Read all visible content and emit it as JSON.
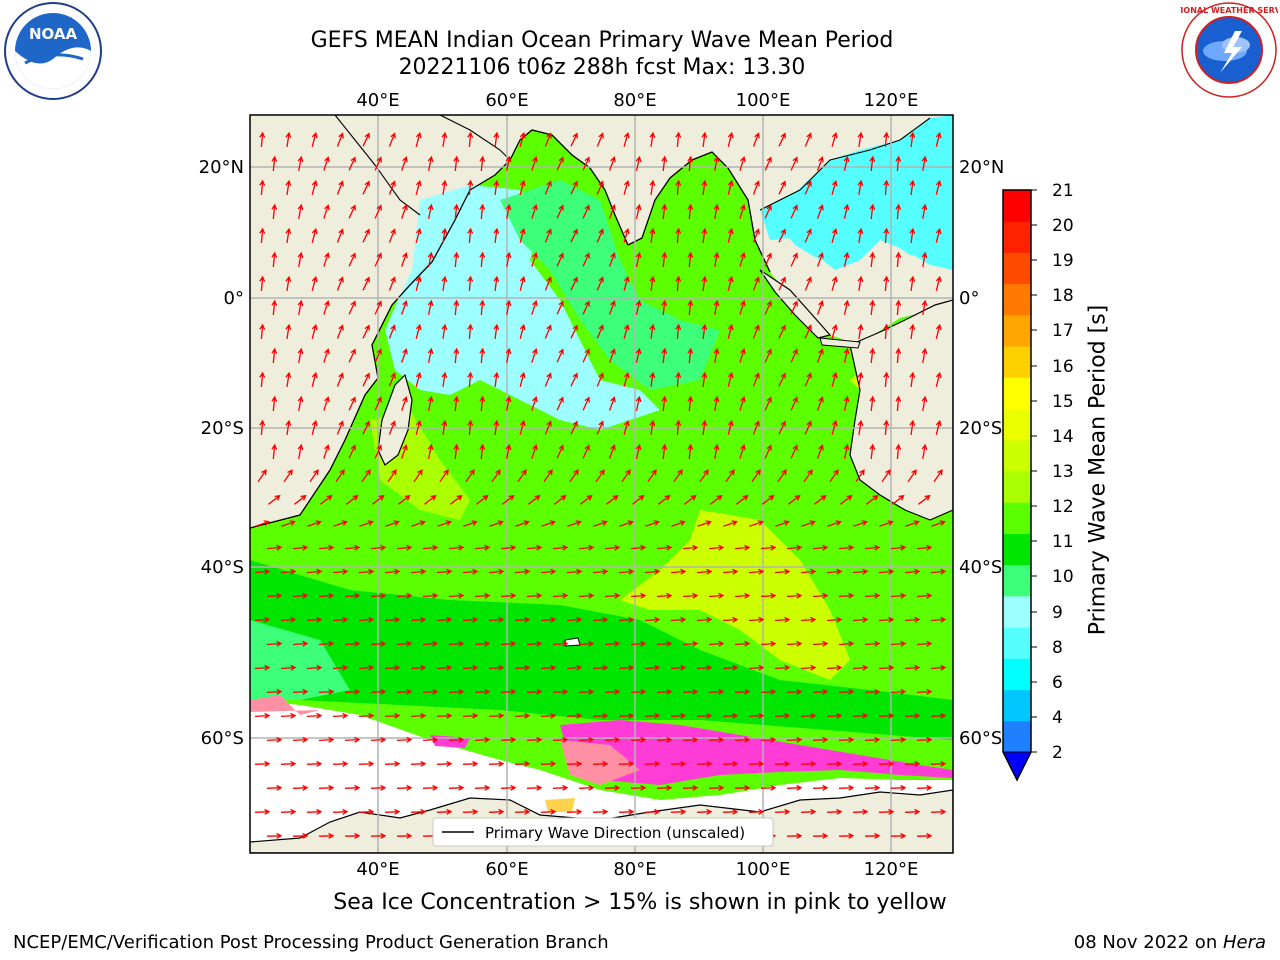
{
  "header": {
    "title_line1": "GEFS MEAN Indian Ocean Primary Wave Mean Period",
    "title_line2": "20221106 t06z 288h fcst   Max: 13.30"
  },
  "logos": {
    "left": {
      "name": "noaa-logo",
      "text": "NOAA"
    },
    "right": {
      "name": "nws-logo",
      "text": "NATIONAL WEATHER SERVICE"
    }
  },
  "map": {
    "lon_labels_top": [
      "40°E",
      "60°E",
      "80°E",
      "100°E",
      "120°E"
    ],
    "lon_labels_bottom": [
      "40°E",
      "60°E",
      "80°E",
      "100°E",
      "120°E"
    ],
    "lat_labels_left": [
      "20°N",
      "0°",
      "20°S",
      "40°S",
      "60°S"
    ],
    "lat_labels_right": [
      "20°N",
      "0°",
      "20°S",
      "40°S",
      "60°S"
    ],
    "legend_label": "Primary Wave Direction (unscaled)",
    "arrow_color": "#ff0000",
    "land_color": "#efeddc",
    "ice_colors": [
      "#ff3dd6",
      "#ff8fa3",
      "#ffd24d"
    ]
  },
  "colorbar": {
    "label": "Primary Wave Mean Period [s]",
    "ticks": [
      "2",
      "4",
      "6",
      "8",
      "9",
      "10",
      "11",
      "12",
      "13",
      "14",
      "15",
      "16",
      "17",
      "18",
      "19",
      "20",
      "21"
    ],
    "colors": [
      "#1e7fff",
      "#00c8ff",
      "#00ffff",
      "#55ffff",
      "#9dffff",
      "#3dff7a",
      "#00e600",
      "#5cff00",
      "#aaff00",
      "#ccff00",
      "#ebff00",
      "#ffff00",
      "#ffd000",
      "#ffa500",
      "#ff7a00",
      "#ff4b00",
      "#ff2200",
      "#ff0000"
    ],
    "extend_color": "#0000ff"
  },
  "notes": {
    "ice": "Sea Ice Concentration > 15% is shown in pink to yellow"
  },
  "footer": {
    "left": "NCEP/EMC/Verification Post Processing Product Generation Branch",
    "right_prefix": "08 Nov 2022 on ",
    "right_host": "Hera"
  }
}
